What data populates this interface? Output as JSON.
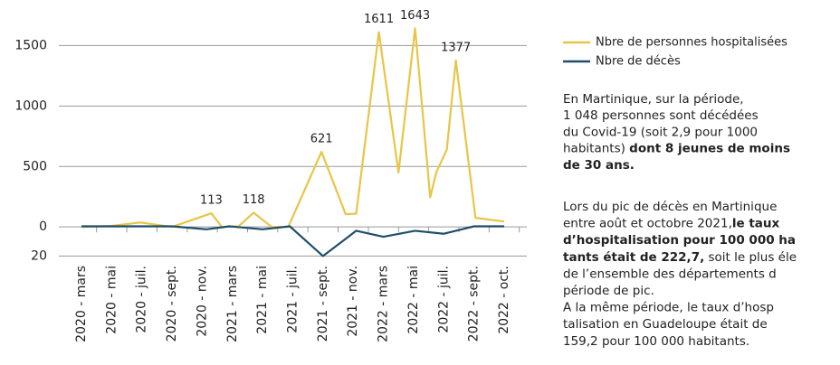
{
  "chart_data": {
    "type": "line",
    "xlim": [
      -0.75,
      14.75
    ],
    "xticks": [
      {
        "value": 0,
        "label": "2020 - mars"
      },
      {
        "value": 1,
        "label": "2020 - mai"
      },
      {
        "value": 2,
        "label": "2020 - juil."
      },
      {
        "value": 3,
        "label": "2020 - sept."
      },
      {
        "value": 4,
        "label": "2020 - nov."
      },
      {
        "value": 5,
        "label": "2021 - mars"
      },
      {
        "value": 6,
        "label": "2021 - mai"
      },
      {
        "value": 7,
        "label": "2021 - juil."
      },
      {
        "value": 8,
        "label": "2021 - sept."
      },
      {
        "value": 9,
        "label": "2021 - nov."
      },
      {
        "value": 10,
        "label": "2022 - mars"
      },
      {
        "value": 11,
        "label": "2022 - mai"
      },
      {
        "value": 12,
        "label": "2022 - juil."
      },
      {
        "value": 13,
        "label": "2022 - sept."
      },
      {
        "value": 14,
        "label": "2022 - oct."
      }
    ],
    "ylim": [
      -290,
      1690
    ],
    "yticks": [
      0,
      500,
      1000,
      1500
    ],
    "y2lim": [
      24,
      -137
    ],
    "y2ticks": [
      20
    ],
    "grid": true,
    "series": [
      {
        "name": "Nbre de personnes hospitalisées",
        "color": "#e8c547",
        "x": [
          0,
          0.96,
          1.95,
          3,
          4.3,
          4.65,
          5.2,
          5.7,
          6.3,
          6.85,
          7.95,
          8.75,
          9.1,
          9.85,
          10.5,
          11.05,
          11.55,
          11.75,
          12.1,
          12.4,
          13.05,
          14
        ],
        "values": [
          0,
          7,
          37,
          0,
          113,
          0,
          5,
          118,
          0,
          0,
          621,
          105,
          110,
          1611,
          450,
          1643,
          245,
          450,
          640,
          1377,
          75,
          45
        ],
        "value_labels": [
          null,
          null,
          null,
          null,
          "113",
          null,
          null,
          "118",
          null,
          null,
          "621",
          null,
          null,
          "1611",
          null,
          "1643",
          null,
          null,
          null,
          "1377",
          null,
          null
        ]
      },
      {
        "name": "Nbre de décès",
        "color": "#1e4e6b",
        "axis": "y2",
        "x": [
          0,
          1.95,
          3,
          4.14,
          4.9,
          6,
          6.9,
          8,
          9.1,
          10,
          11.05,
          12,
          13,
          14
        ],
        "values": [
          0,
          0,
          0,
          2,
          0,
          2,
          0,
          20,
          3,
          7,
          3,
          5,
          0,
          0
        ]
      }
    ]
  },
  "panel": {
    "paragraphs": [
      [
        [
          {
            "t": "En Martinique, sur la période,"
          }
        ],
        [
          {
            "t": "1 048 personnes sont décédées"
          }
        ],
        [
          {
            "t": "du Covid-19 (soit 2,9 pour 1000"
          }
        ],
        [
          {
            "t": "habitants) "
          },
          {
            "t": "dont 8 jeunes de moins",
            "b": true
          }
        ],
        [
          {
            "t": "de 30 ans.",
            "b": true
          }
        ]
      ],
      [
        [
          {
            "t": "Lors du pic de décès en Martinique"
          }
        ],
        [
          {
            "t": "entre août et octobre 2021,"
          },
          {
            "t": "le taux",
            "b": true
          }
        ],
        [
          {
            "t": "d’hospitalisation pour 100 000 ha",
            "b": true
          }
        ],
        [
          {
            "t": "tants était de 222,7,",
            "b": true
          },
          {
            "t": " soit le plus éle"
          }
        ],
        [
          {
            "t": "de l’ensemble des départements d"
          }
        ],
        [
          {
            "t": "période de pic."
          }
        ],
        [
          {
            "t": "A la même période, le taux d’hosp"
          }
        ],
        [
          {
            "t": "talisation en Guadeloupe était de"
          }
        ],
        [
          {
            "t": "159,2 pour 100 000 habitants."
          }
        ]
      ]
    ]
  }
}
